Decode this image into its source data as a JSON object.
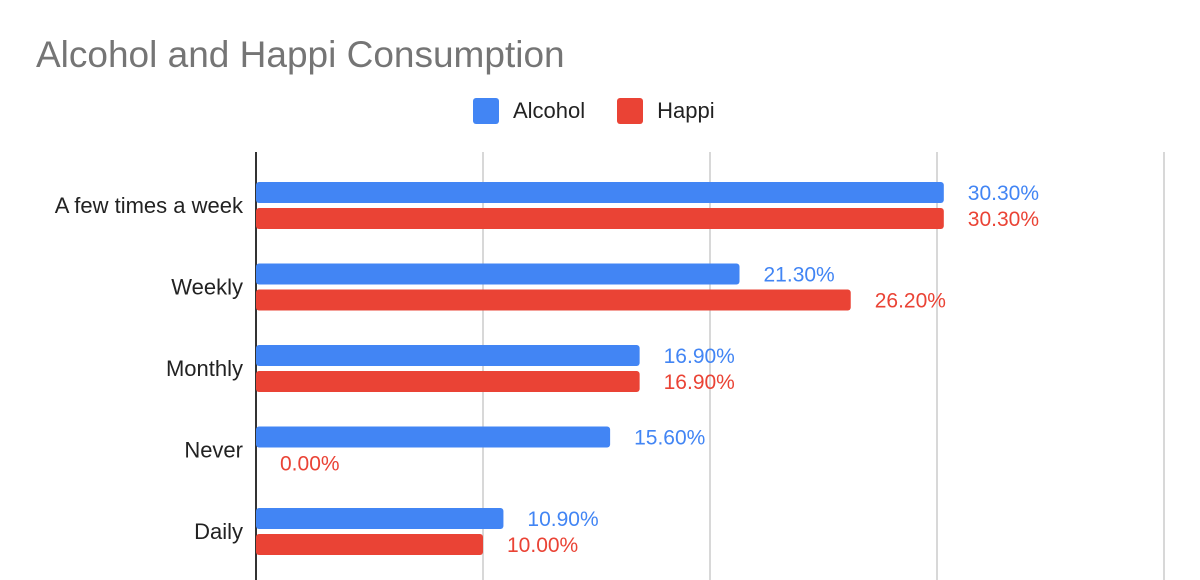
{
  "chart_data": {
    "type": "bar",
    "orientation": "horizontal",
    "title": "Alcohol and Happi Consumption",
    "categories": [
      "A few times a week",
      "Weekly",
      "Monthly",
      "Never",
      "Daily"
    ],
    "series": [
      {
        "name": "Alcohol",
        "color": "#4285f4",
        "values": [
          30.3,
          21.3,
          16.9,
          15.6,
          10.9
        ],
        "labels": [
          "30.30%",
          "21.30%",
          "16.90%",
          "15.60%",
          "10.90%"
        ]
      },
      {
        "name": "Happi",
        "color": "#ea4335",
        "values": [
          30.3,
          26.2,
          16.9,
          0.0,
          10.0
        ],
        "labels": [
          "30.30%",
          "26.20%",
          "16.90%",
          "0.00%",
          "10.00%"
        ]
      }
    ],
    "xlim": [
      0,
      40
    ],
    "grid": true,
    "legend": "top"
  }
}
